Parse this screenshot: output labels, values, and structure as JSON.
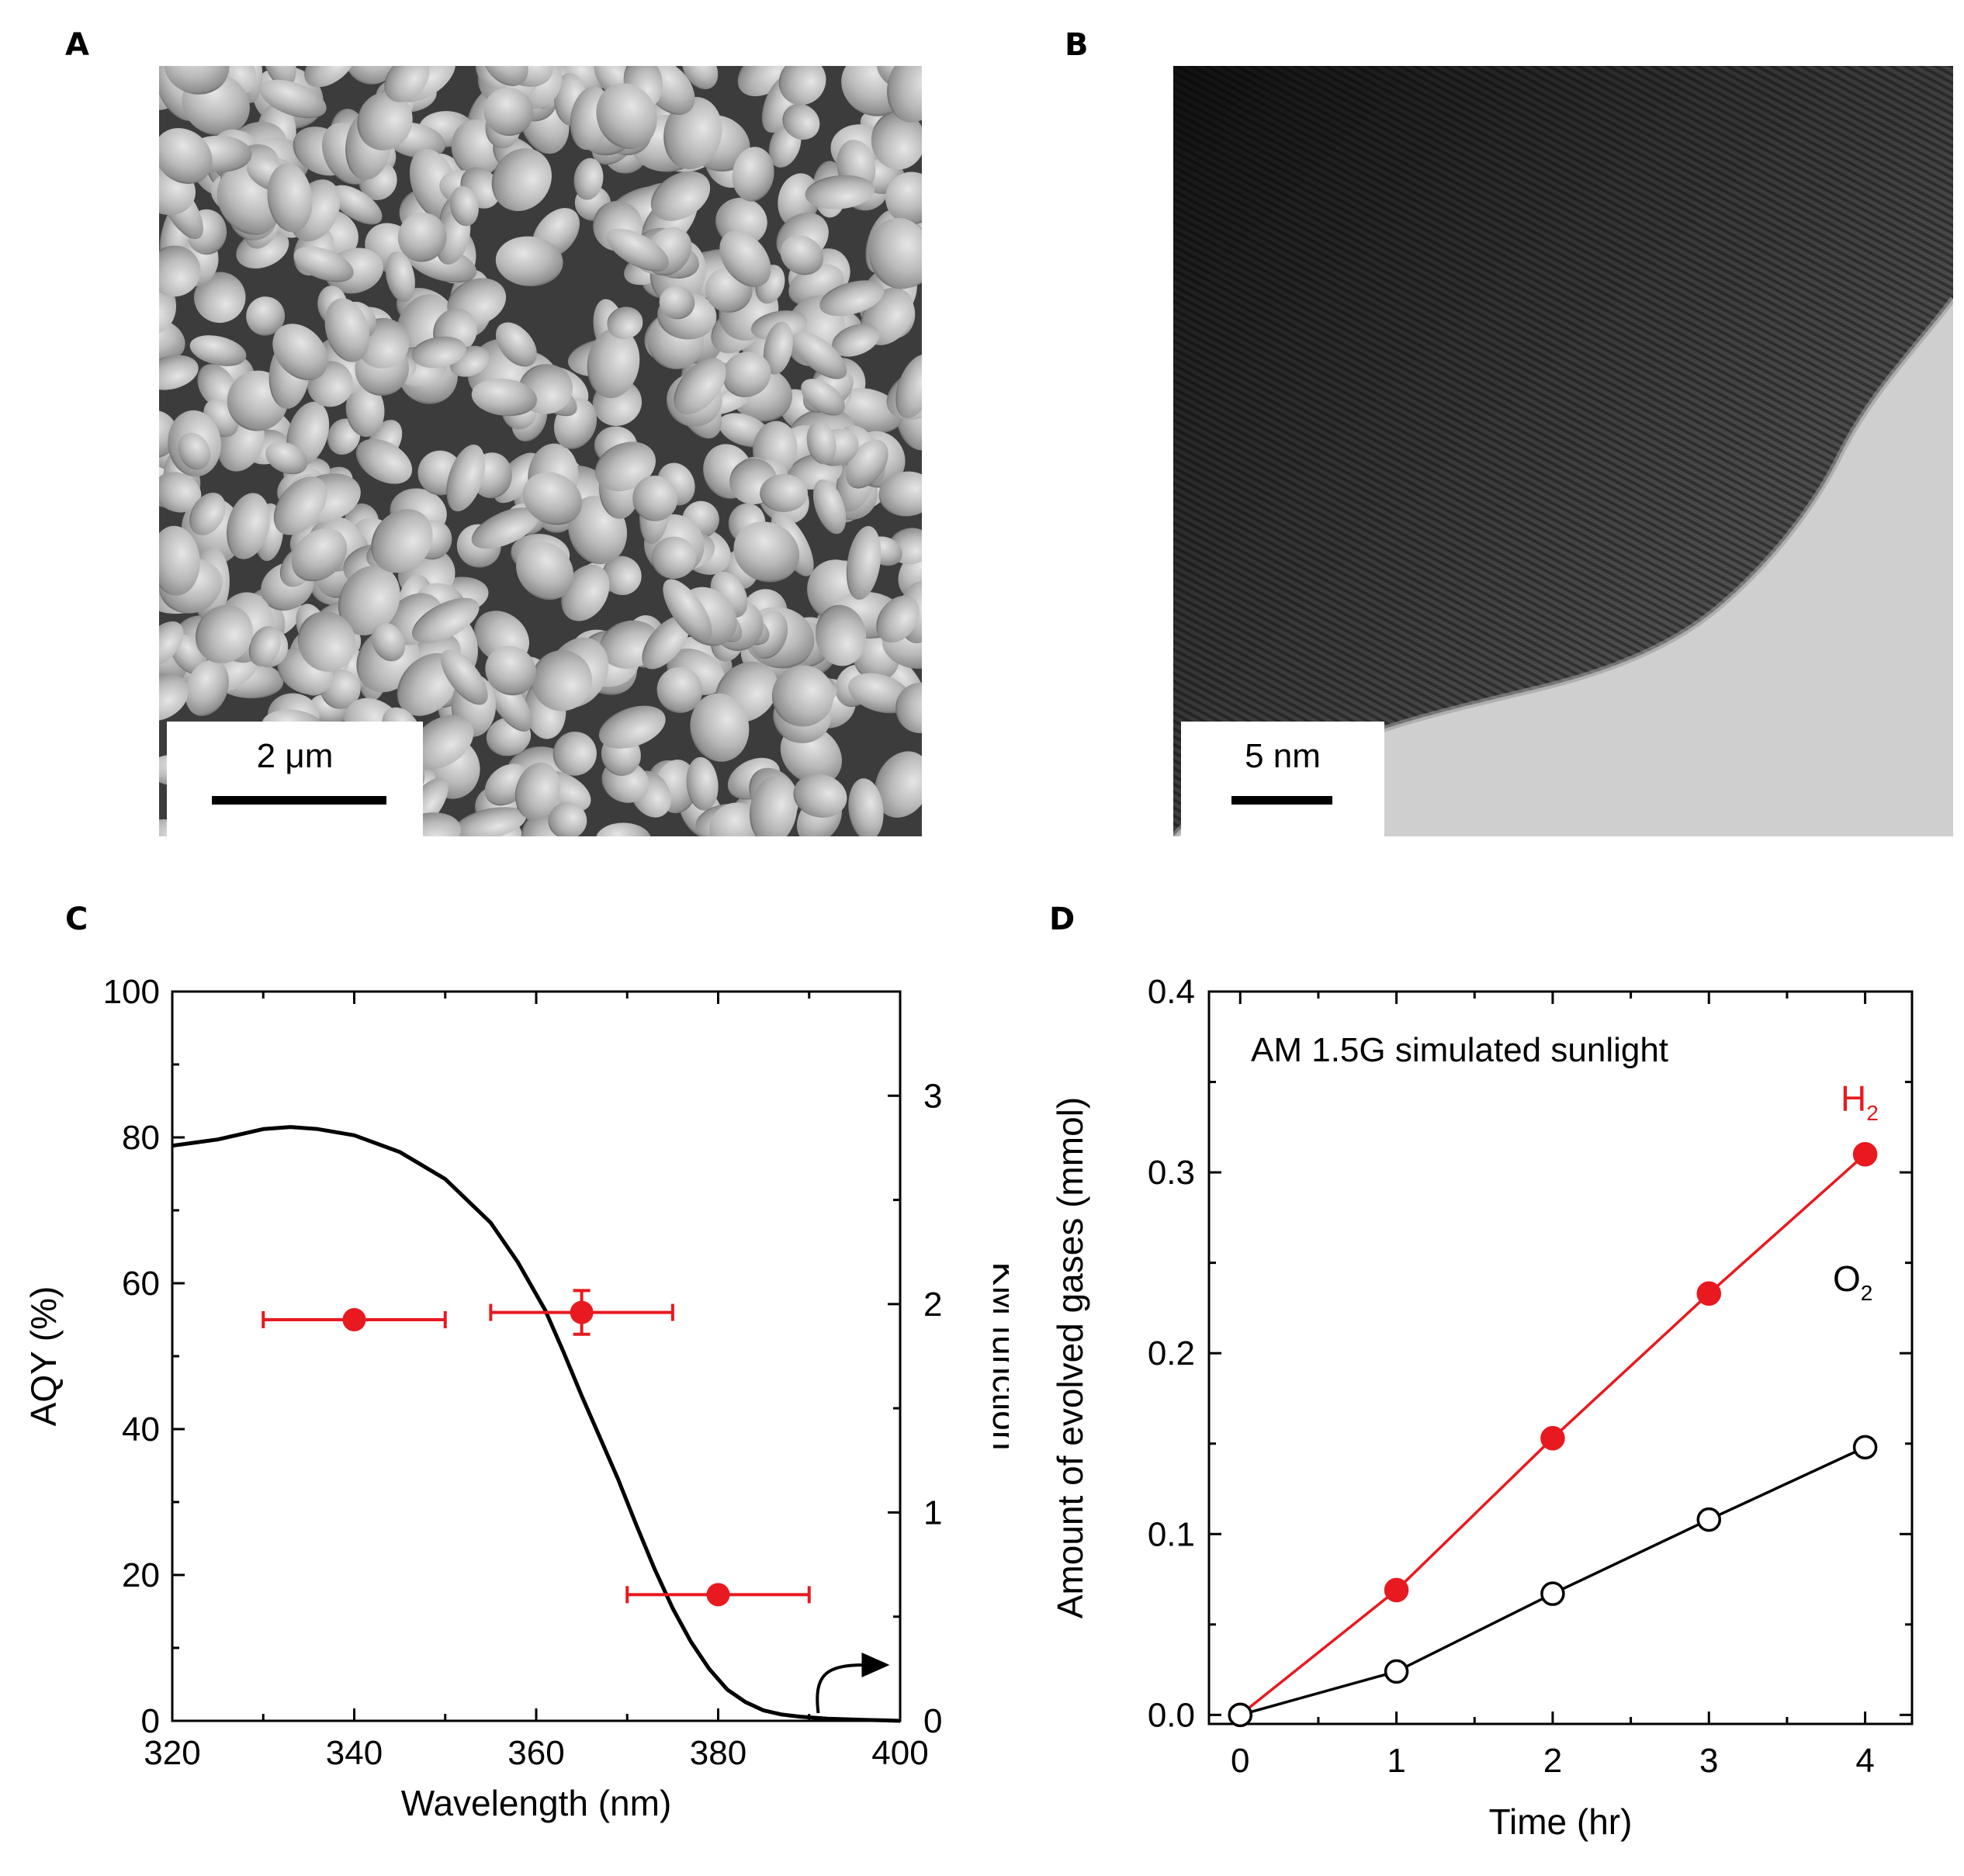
{
  "panels": {
    "a": {
      "letter": "A",
      "scalebar": "2 μm",
      "image": "SEM micrograph of particles"
    },
    "b": {
      "letter": "B",
      "scalebar": "5 nm",
      "image": "TEM lattice fringe micrograph"
    },
    "c": {
      "letter": "C"
    },
    "d": {
      "letter": "D"
    }
  },
  "colors": {
    "red": "#e8191f",
    "black": "#000000"
  },
  "chart_data": [
    {
      "type": "scatter",
      "panel": "C",
      "title": "",
      "xlabel": "Wavelength (nm)",
      "ylabel": "AQY (%)",
      "y2label": "KM function",
      "xlim": [
        320,
        400
      ],
      "ylim": [
        0,
        100
      ],
      "y2lim": [
        0,
        3.5
      ],
      "xticks": [
        "320",
        "340",
        "360",
        "380",
        "400"
      ],
      "yticks": [
        "0",
        "20",
        "40",
        "60",
        "80",
        "100"
      ],
      "y2ticks": [
        "0",
        "1",
        "2",
        "3"
      ],
      "series": [
        {
          "type": "scatter",
          "axis": "left",
          "color": "#e8191f",
          "points": [
            {
              "x": 340,
              "y": 55,
              "xerr": [
                330,
                350
              ]
            },
            {
              "x": 365,
              "y": 56,
              "xerr": [
                355,
                375
              ],
              "yerr": [
                53,
                59
              ]
            },
            {
              "x": 380,
              "y": 17.3,
              "xerr": [
                370,
                390
              ]
            }
          ]
        },
        {
          "type": "line",
          "axis": "right",
          "color": "#000000",
          "x": [
            320,
            325,
            330,
            333,
            336,
            340,
            345,
            350,
            355,
            358,
            361,
            363,
            365,
            367,
            369,
            371,
            373,
            375,
            377,
            379,
            381,
            383,
            385,
            387,
            389,
            392,
            396,
            400
          ],
          "y": [
            2.76,
            2.79,
            2.84,
            2.85,
            2.84,
            2.81,
            2.73,
            2.6,
            2.39,
            2.2,
            1.97,
            1.77,
            1.56,
            1.36,
            1.16,
            0.94,
            0.73,
            0.54,
            0.38,
            0.25,
            0.15,
            0.09,
            0.05,
            0.03,
            0.02,
            0.01,
            0.005,
            0.0
          ]
        }
      ],
      "annotation": "arrow pointing to right axis"
    },
    {
      "type": "line",
      "panel": "D",
      "title": "",
      "xlabel": "Time (hr)",
      "ylabel": "Amount of evolved gases (mmol)",
      "xlim": [
        -0.2,
        4.3
      ],
      "ylim": [
        -0.005,
        0.4
      ],
      "xticks": [
        "0",
        "1",
        "2",
        "3",
        "4"
      ],
      "yticks": [
        "0.0",
        "0.1",
        "0.2",
        "0.3",
        "0.4"
      ],
      "annotation_text": "AM 1.5G simulated sunlight",
      "series": [
        {
          "name": "H",
          "sub": "2",
          "color": "#e8191f",
          "filled": true,
          "x": [
            0,
            1,
            2,
            3,
            4
          ],
          "y": [
            0.0,
            0.069,
            0.153,
            0.233,
            0.31
          ]
        },
        {
          "name": "O",
          "sub": "2",
          "color": "#000000",
          "filled": false,
          "x": [
            0,
            1,
            2,
            3,
            4
          ],
          "y": [
            0.0,
            0.024,
            0.067,
            0.108,
            0.148
          ]
        }
      ]
    }
  ]
}
